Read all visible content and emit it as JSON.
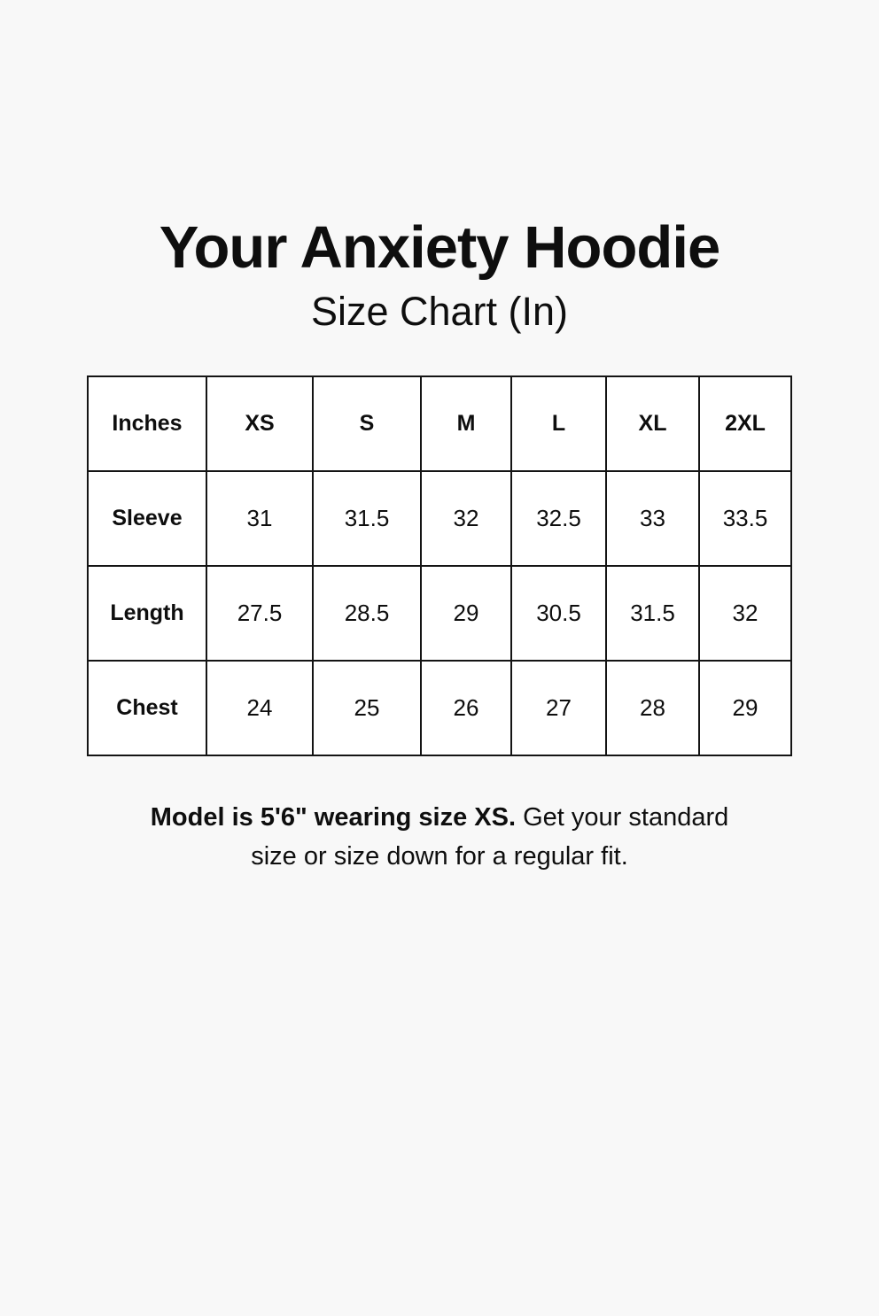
{
  "page": {
    "title": "Your Anxiety Hoodie",
    "subtitle": "Size Chart (In)"
  },
  "chart_data": {
    "type": "table",
    "unit_header": "Inches",
    "columns": [
      "XS",
      "S",
      "M",
      "L",
      "XL",
      "2XL"
    ],
    "rows": [
      {
        "label": "Sleeve",
        "values": [
          "31",
          "31.5",
          "32",
          "32.5",
          "33",
          "33.5"
        ]
      },
      {
        "label": "Length",
        "values": [
          "27.5",
          "28.5",
          "29",
          "30.5",
          "31.5",
          "32"
        ]
      },
      {
        "label": "Chest",
        "values": [
          "24",
          "25",
          "26",
          "27",
          "28",
          "29"
        ]
      }
    ]
  },
  "footer": {
    "lead_bold": "Model is 5'6\" wearing size XS.",
    "rest": "Get your standard size or size down for a regular fit."
  },
  "colors": {
    "page_background": "#f8f8f8",
    "cell_background": "#ffffff",
    "border": "#141414",
    "text": "#0e0e0e"
  }
}
